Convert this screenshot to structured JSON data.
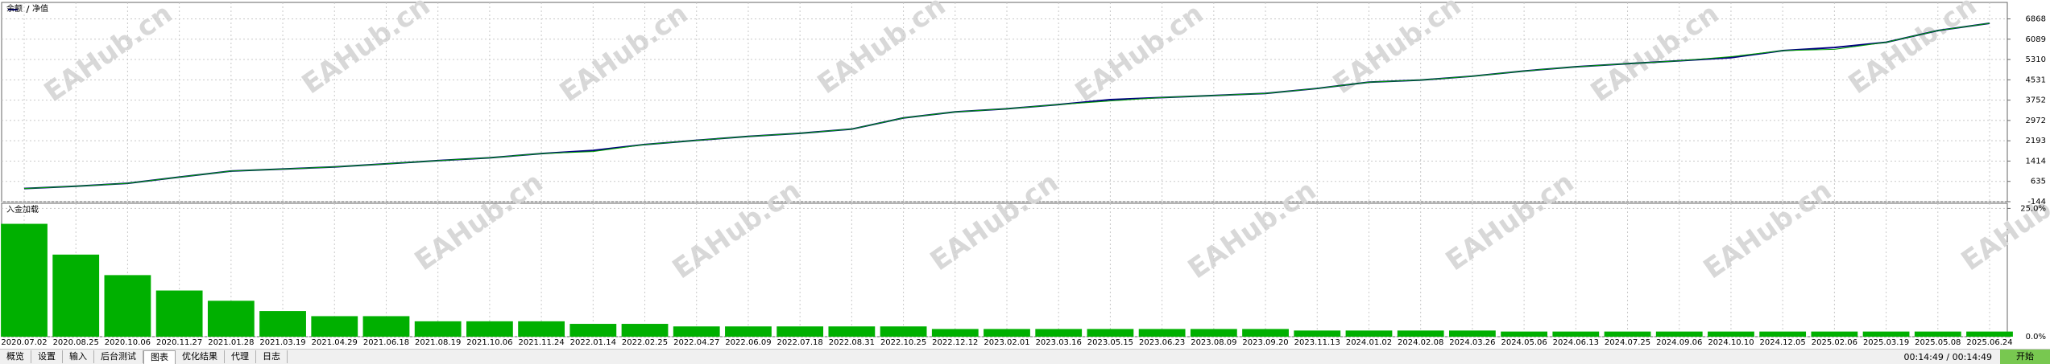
{
  "chart_data": [
    {
      "type": "line",
      "categories": [
        "2020.07.02",
        "2020.08.25",
        "2020.10.06",
        "2020.11.27",
        "2021.01.28",
        "2021.03.19",
        "2021.04.29",
        "2021.06.18",
        "2021.08.19",
        "2021.10.06",
        "2021.11.24",
        "2022.01.14",
        "2022.02.25",
        "2022.04.27",
        "2022.06.09",
        "2022.07.18",
        "2022.08.31",
        "2022.10.25",
        "2022.12.12",
        "2023.02.01",
        "2023.03.16",
        "2023.05.15",
        "2023.06.23",
        "2023.08.09",
        "2023.09.20",
        "2023.11.13",
        "2024.01.02",
        "2024.02.08",
        "2024.03.26",
        "2024.05.06",
        "2024.06.13",
        "2024.07.25",
        "2024.09.06",
        "2024.10.10",
        "2024.12.05",
        "2025.02.06",
        "2025.03.19",
        "2025.05.08",
        "2025.06.24"
      ],
      "series": [
        {
          "name": "余额",
          "color": "#00007f",
          "values": [
            360,
            450,
            560,
            800,
            1030,
            1110,
            1190,
            1310,
            1430,
            1540,
            1700,
            1820,
            2050,
            2210,
            2360,
            2480,
            2640,
            3070,
            3300,
            3420,
            3580,
            3770,
            3850,
            3930,
            4010,
            4200,
            4440,
            4520,
            4670,
            4870,
            5030,
            5150,
            5260,
            5380,
            5650,
            5770,
            5970,
            6420,
            6700
          ]
        },
        {
          "name": "净值",
          "color": "#00a000",
          "values": [
            360,
            450,
            560,
            800,
            1030,
            1110,
            1190,
            1310,
            1430,
            1540,
            1700,
            1780,
            2050,
            2210,
            2360,
            2480,
            2640,
            3070,
            3300,
            3420,
            3580,
            3720,
            3850,
            3930,
            4010,
            4200,
            4440,
            4520,
            4670,
            4870,
            5030,
            5150,
            5260,
            5420,
            5650,
            5700,
            5970,
            6420,
            6700
          ]
        }
      ],
      "ylim": [
        -144,
        7500
      ],
      "yticks": [
        6868,
        6089,
        5310,
        4531,
        3752,
        2972,
        2193,
        1414,
        635,
        -144
      ],
      "grid": true
    },
    {
      "type": "bar",
      "title": "入金加载",
      "color": "#00b000",
      "values": [
        22,
        16,
        12,
        9,
        7,
        5,
        4,
        4,
        3,
        3,
        3,
        2.5,
        2.5,
        2,
        2,
        2,
        2,
        2,
        1.5,
        1.5,
        1.5,
        1.5,
        1.5,
        1.5,
        1.5,
        1.2,
        1.2,
        1.2,
        1.2,
        1,
        1,
        1,
        1,
        1,
        1,
        1,
        1,
        1,
        1
      ],
      "ylim": [
        0,
        26
      ],
      "yticks": [
        {
          "value": 25,
          "label": "25.0%"
        },
        {
          "value": 0,
          "label": "0.0%"
        }
      ],
      "grid": true
    }
  ],
  "watermark": "EAHub.cn",
  "tabs": [
    "概览",
    "设置",
    "输入",
    "后台测试",
    "图表",
    "优化结果",
    "代理",
    "日志"
  ],
  "active_tab": 4,
  "status": {
    "time": "00:14:49 / 00:14:49",
    "button": "开始"
  }
}
